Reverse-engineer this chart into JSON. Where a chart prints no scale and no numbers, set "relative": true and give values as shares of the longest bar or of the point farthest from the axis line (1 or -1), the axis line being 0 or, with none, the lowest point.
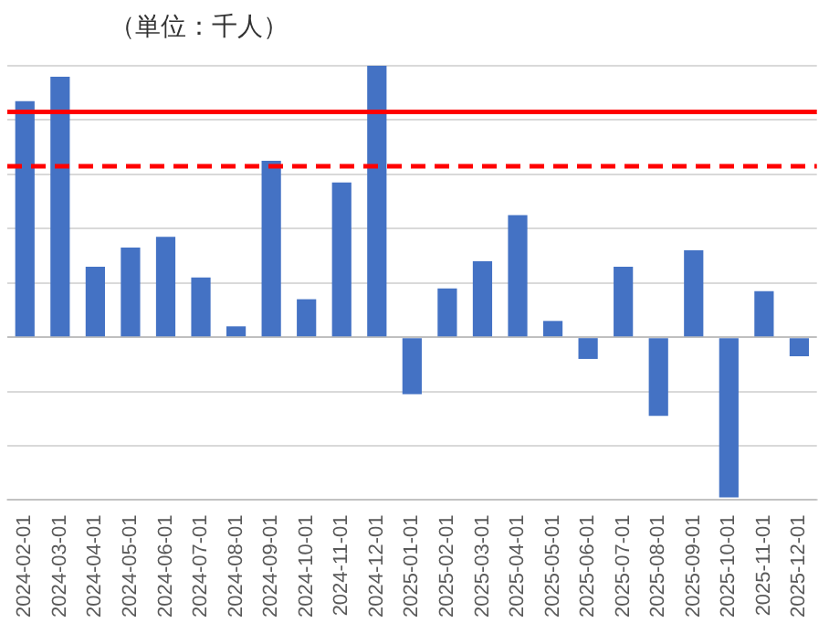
{
  "chart_data": {
    "type": "bar",
    "subtitle": "（単位：千人）",
    "relative": true,
    "grid": "y",
    "legend": false,
    "categories": [
      "2024-02-01",
      "2024-03-01",
      "2024-04-01",
      "2024-05-01",
      "2024-06-01",
      "2024-07-01",
      "2024-08-01",
      "2024-09-01",
      "2024-10-01",
      "2024-11-01",
      "2024-12-01",
      "2025-01-01",
      "2025-02-01",
      "2025-03-01",
      "2025-04-01",
      "2025-05-01",
      "2025-06-01",
      "2025-07-01",
      "2025-08-01",
      "2025-09-01",
      "2025-10-01",
      "2025-11-01",
      "2025-12-01"
    ],
    "series": [
      {
        "color": "#4472c4",
        "values": [
          0.87,
          0.96,
          0.26,
          0.33,
          0.37,
          0.22,
          0.04,
          0.65,
          0.14,
          0.57,
          1,
          -0.21,
          0.18,
          0.28,
          0.45,
          0.06,
          -0.08,
          0.26,
          -0.29,
          0.32,
          -0.59,
          0.17,
          -0.07
        ]
      }
    ],
    "ref_lines": [
      {
        "axis": "y",
        "value": 0.83,
        "label": null,
        "color": "#ff0000",
        "line_style": "solid"
      },
      {
        "axis": "y",
        "value": 0.63,
        "label": null,
        "color": "#ff0000",
        "line_style": "dashed"
      }
    ]
  }
}
